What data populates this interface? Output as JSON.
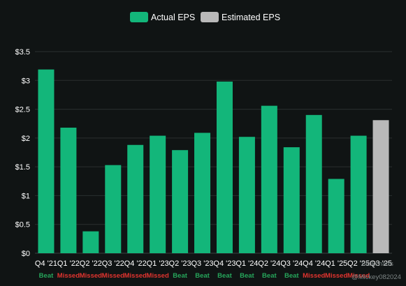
{
  "chart_data": {
    "type": "bar",
    "title": "",
    "xlabel": "",
    "ylabel": "",
    "ylim": [
      0,
      3.5
    ],
    "yticks": [
      "$0",
      "$0.5",
      "$1",
      "$1.5",
      "$2",
      "$2.5",
      "$3",
      "$3.5"
    ],
    "categories": [
      "Q4 '21",
      "Q1 '22",
      "Q2 '22",
      "Q3 '22",
      "Q4 '22",
      "Q1 '23",
      "Q2 '23",
      "Q3 '23",
      "Q4 '23",
      "Q1 '24",
      "Q2 '24",
      "Q3 '24",
      "Q4 '24",
      "Q1 '25",
      "Q2 '25",
      "Q3 '25"
    ],
    "series": [
      {
        "name": "Actual EPS",
        "color": "#13b67a",
        "values": [
          3.19,
          2.18,
          0.38,
          1.53,
          1.88,
          2.04,
          1.79,
          2.09,
          2.98,
          2.02,
          2.56,
          1.84,
          2.4,
          1.29,
          2.04,
          null
        ]
      },
      {
        "name": "Estimated EPS",
        "color": "#b9b9b9",
        "values": [
          null,
          null,
          null,
          null,
          null,
          null,
          null,
          null,
          null,
          null,
          null,
          null,
          null,
          null,
          null,
          2.31
        ]
      }
    ],
    "results": [
      "Beat",
      "Missed",
      "Missed",
      "Missed",
      "Missed",
      "Missed",
      "Beat",
      "Beat",
      "Beat",
      "Beat",
      "Beat",
      "Beat",
      "Missed",
      "Missed",
      "Missed",
      ""
    ],
    "result_colors": {
      "Beat": "#26a65b",
      "Missed": "#e0342f"
    },
    "grid": true,
    "legend": "top-center"
  },
  "watermark": {
    "line1": "Slickcharts",
    "line2": "@Mickey082024"
  },
  "colors": {
    "background": "#101414",
    "grid": "#2a2f2f",
    "axis_text": "#ffffff"
  }
}
